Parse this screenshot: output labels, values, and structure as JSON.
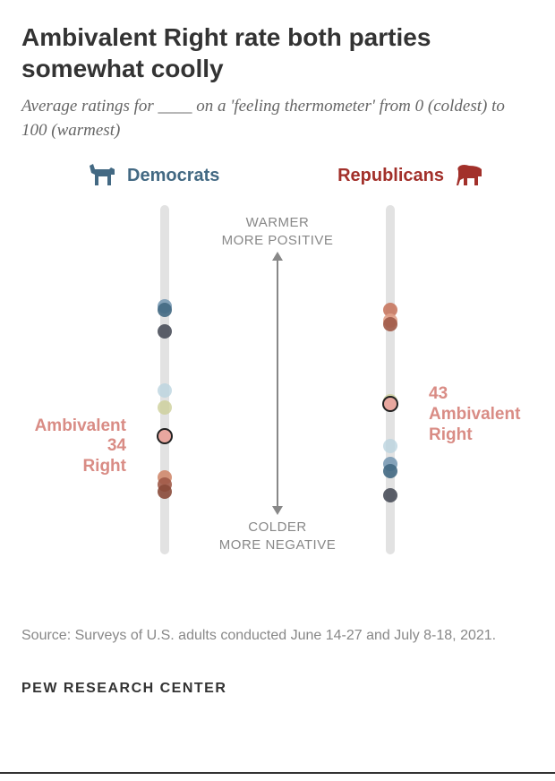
{
  "title": "Ambivalent Right rate both parties somewhat coolly",
  "subtitle": "Average ratings for ____ on a 'feeling thermometer' from 0 (coldest) to 100 (warmest)",
  "parties": {
    "dem": {
      "label": "Democrats",
      "color": "#436983"
    },
    "rep": {
      "label": "Republicans",
      "color": "#a2302a"
    }
  },
  "scale": {
    "min": 0,
    "max": 100
  },
  "center_labels": {
    "top_line1": "WARMER",
    "top_line2": "MORE POSITIVE",
    "bottom_line1": "COLDER",
    "bottom_line2": "MORE NEGATIVE"
  },
  "dem_thermometer": {
    "highlight": {
      "value": 34,
      "label_line1": "Ambivalent",
      "label_line2": "Right",
      "color": "#e8a79f"
    },
    "dots": [
      {
        "value": 71,
        "color": "#7a9bb5",
        "opacity": 0.9
      },
      {
        "value": 70,
        "color": "#436983",
        "opacity": 0.9
      },
      {
        "value": 64,
        "color": "#4a4f5a",
        "opacity": 0.9
      },
      {
        "value": 47,
        "color": "#bcd4e0",
        "opacity": 0.8
      },
      {
        "value": 42,
        "color": "#cdd09a",
        "opacity": 0.8
      },
      {
        "value": 22,
        "color": "#d08a6e",
        "opacity": 0.9
      },
      {
        "value": 20,
        "color": "#a05a48",
        "opacity": 0.9
      },
      {
        "value": 18,
        "color": "#8a4a3a",
        "opacity": 0.9
      }
    ]
  },
  "rep_thermometer": {
    "highlight": {
      "value": 43,
      "label_line1": "Ambivalent",
      "label_line2": "Right",
      "color": "#e8a79f"
    },
    "dots": [
      {
        "value": 70,
        "color": "#c87860",
        "opacity": 0.9
      },
      {
        "value": 67,
        "color": "#e0a088",
        "opacity": 0.9
      },
      {
        "value": 66,
        "color": "#a05a48",
        "opacity": 0.9
      },
      {
        "value": 44,
        "color": "#cdd09a",
        "opacity": 0.8
      },
      {
        "value": 31,
        "color": "#bcd4e0",
        "opacity": 0.8
      },
      {
        "value": 26,
        "color": "#7a9bb5",
        "opacity": 0.9
      },
      {
        "value": 24,
        "color": "#436983",
        "opacity": 0.9
      },
      {
        "value": 17,
        "color": "#4a4f5a",
        "opacity": 0.9
      }
    ]
  },
  "source": "Source: Surveys of U.S. adults conducted June 14-27 and July 8-18, 2021.",
  "footer": "PEW RESEARCH CENTER"
}
